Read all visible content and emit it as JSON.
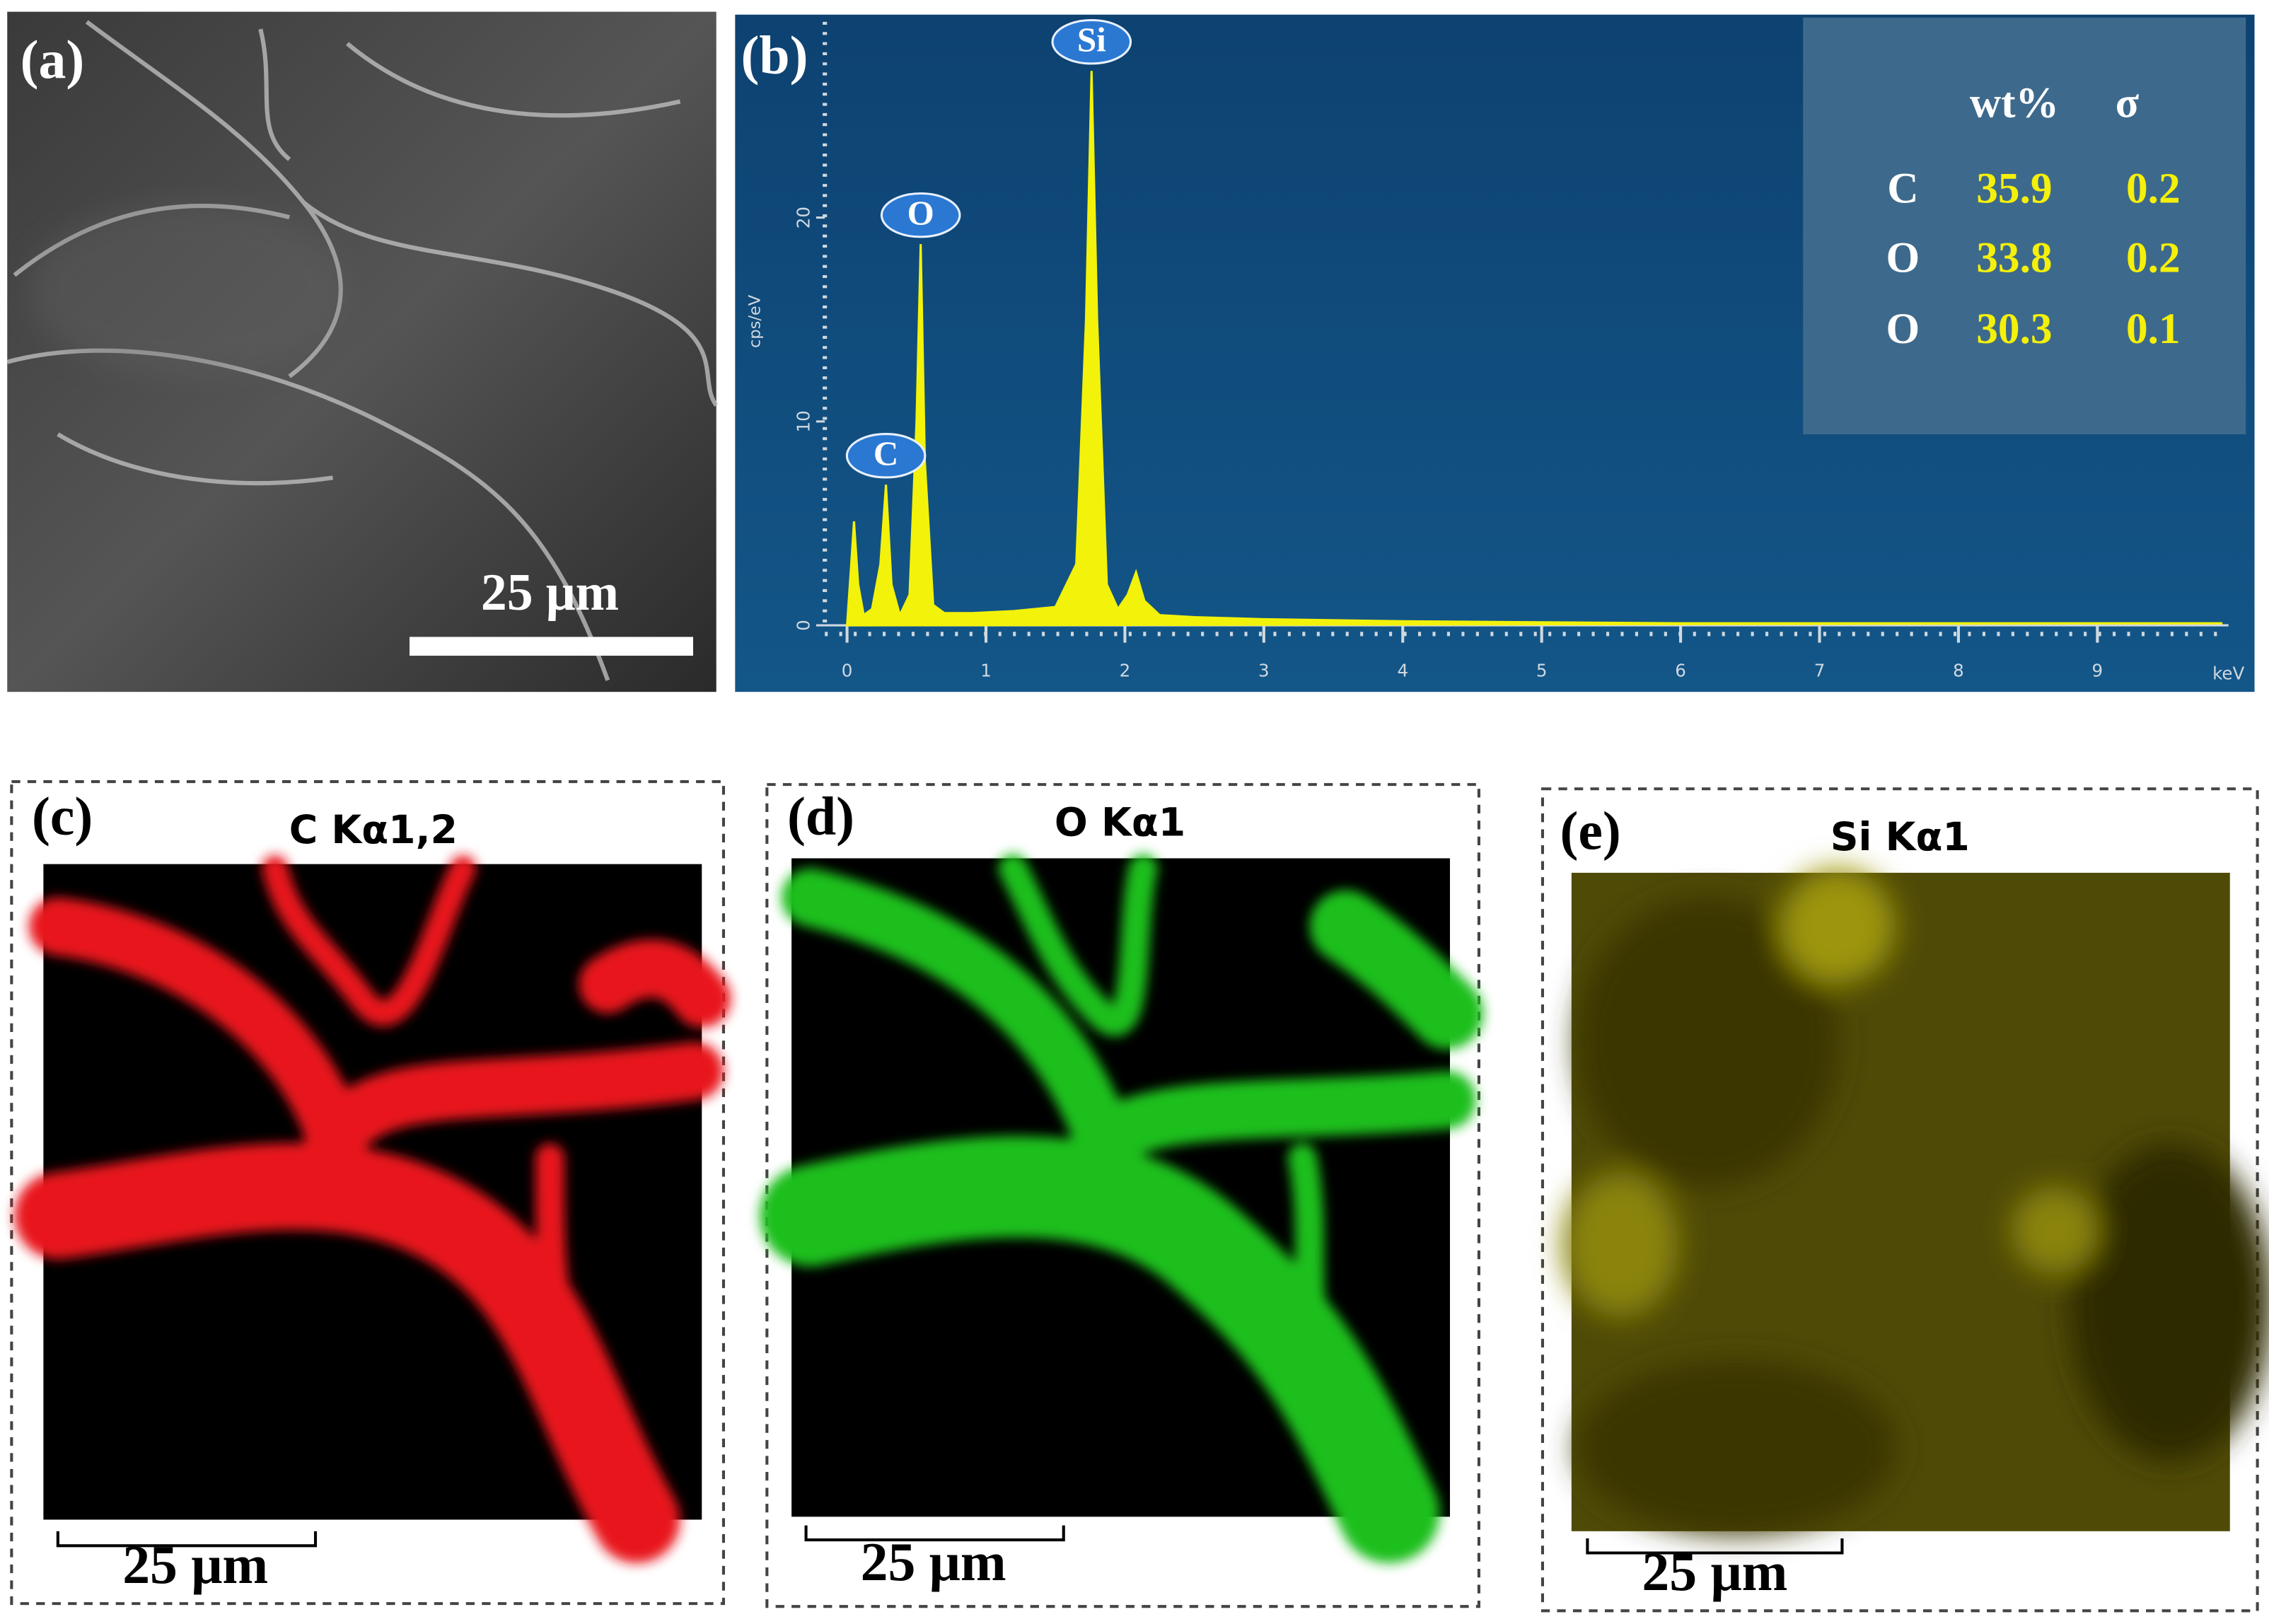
{
  "panels": {
    "a": {
      "label": "(a)",
      "scale_bar": "25 μm"
    },
    "c": {
      "label": "(c)",
      "title": "C Kα1,2",
      "scale_bar": "25 μm"
    },
    "d": {
      "label": "(d)",
      "title": "O Kα1",
      "scale_bar": "25 μm"
    },
    "e": {
      "label": "(e)",
      "title": "Si Kα1",
      "scale_bar": "25 μm"
    }
  },
  "chart_data": {
    "type": "line",
    "label": "(b)",
    "xlabel": "keV",
    "ylabel": "cps/eV",
    "color": "#f2f20a",
    "annotations": [
      "C",
      "O",
      "Si"
    ],
    "x": [
      0,
      0.03,
      0.05,
      0.08,
      0.12,
      0.18,
      0.24,
      0.28,
      0.32,
      0.38,
      0.45,
      0.5,
      0.53,
      0.56,
      0.62,
      0.7,
      0.9,
      1.2,
      1.5,
      1.65,
      1.72,
      1.76,
      1.8,
      1.87,
      1.95,
      2.02,
      2.08,
      2.14,
      2.25,
      2.5,
      3,
      4,
      5,
      6,
      7,
      8,
      9,
      9.9
    ],
    "values": [
      0,
      3,
      5.1,
      2,
      0.5,
      0.8,
      3,
      6.9,
      2,
      0.5,
      1.5,
      10,
      18.7,
      8,
      1,
      0.6,
      0.6,
      0.7,
      0.9,
      3,
      15,
      27.2,
      15,
      2,
      0.8,
      1.5,
      2.6,
      1.2,
      0.5,
      0.4,
      0.3,
      0.2,
      0.15,
      0.1,
      0.1,
      0.1,
      0.1,
      0.1
    ],
    "xlim": [
      -0.16,
      10.1
    ],
    "ylim": [
      0,
      29.6
    ],
    "xticks": [
      0,
      1,
      2,
      3,
      4,
      5,
      6,
      7,
      8,
      9
    ],
    "yticks": [
      0,
      10,
      20
    ]
  },
  "table": {
    "header": [
      "wt%",
      "σ"
    ],
    "rows": [
      [
        "C",
        35.9,
        0.2
      ],
      [
        "O",
        33.8,
        0.2
      ],
      [
        "O",
        30.3,
        0.1
      ]
    ]
  }
}
